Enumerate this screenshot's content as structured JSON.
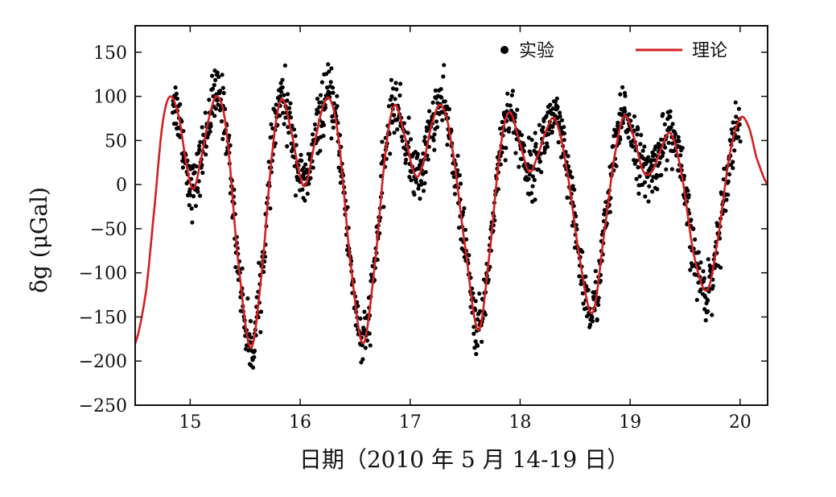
{
  "chart_data": {
    "type": "scatter",
    "title": "",
    "xlabel": "日期（2010 年 5 月 14-19 日）",
    "ylabel": "δg (μGal)",
    "xlim": [
      14.5,
      20.25
    ],
    "ylim": [
      -250,
      180
    ],
    "x_ticks": [
      15,
      16,
      17,
      18,
      19,
      20
    ],
    "y_ticks": [
      150,
      100,
      50,
      0,
      -50,
      -100,
      -150,
      -200,
      -250
    ],
    "x_tick_labels": [
      "15",
      "16",
      "17",
      "18",
      "19",
      "20"
    ],
    "y_tick_labels": [
      "150",
      "100",
      "50",
      "0",
      "−50",
      "−100",
      "−150",
      "−200",
      "−250"
    ],
    "grid": false,
    "legend_position": "top-right",
    "series": [
      {
        "name": "实验",
        "kind": "scatter",
        "color": "#000000",
        "x_range": [
          14.84,
          20.0
        ],
        "note_hidden": ""
      },
      {
        "name": "理论",
        "kind": "line",
        "color": "#d42020",
        "keypoints": [
          [
            14.5,
            -180
          ],
          [
            14.6,
            -120
          ],
          [
            14.68,
            -20
          ],
          [
            14.75,
            70
          ],
          [
            14.82,
            100
          ],
          [
            14.9,
            75
          ],
          [
            14.97,
            20
          ],
          [
            15.03,
            -5
          ],
          [
            15.1,
            30
          ],
          [
            15.18,
            80
          ],
          [
            15.25,
            100
          ],
          [
            15.33,
            60
          ],
          [
            15.43,
            -80
          ],
          [
            15.55,
            -185
          ],
          [
            15.65,
            -100
          ],
          [
            15.75,
            40
          ],
          [
            15.83,
            97
          ],
          [
            15.92,
            60
          ],
          [
            16.0,
            10
          ],
          [
            16.05,
            0
          ],
          [
            16.12,
            40
          ],
          [
            16.2,
            85
          ],
          [
            16.27,
            97
          ],
          [
            16.35,
            50
          ],
          [
            16.45,
            -80
          ],
          [
            16.57,
            -180
          ],
          [
            16.68,
            -90
          ],
          [
            16.78,
            40
          ],
          [
            16.86,
            90
          ],
          [
            16.95,
            55
          ],
          [
            17.05,
            10
          ],
          [
            17.12,
            25
          ],
          [
            17.2,
            70
          ],
          [
            17.28,
            90
          ],
          [
            17.37,
            50
          ],
          [
            17.5,
            -70
          ],
          [
            17.62,
            -165
          ],
          [
            17.72,
            -80
          ],
          [
            17.82,
            40
          ],
          [
            17.9,
            82
          ],
          [
            17.98,
            55
          ],
          [
            18.08,
            15
          ],
          [
            18.15,
            30
          ],
          [
            18.25,
            65
          ],
          [
            18.32,
            73
          ],
          [
            18.42,
            20
          ],
          [
            18.55,
            -90
          ],
          [
            18.66,
            -145
          ],
          [
            18.77,
            -50
          ],
          [
            18.87,
            40
          ],
          [
            18.95,
            78
          ],
          [
            19.03,
            55
          ],
          [
            19.12,
            15
          ],
          [
            19.2,
            15
          ],
          [
            19.28,
            40
          ],
          [
            19.37,
            58
          ],
          [
            19.47,
            10
          ],
          [
            19.58,
            -80
          ],
          [
            19.7,
            -120
          ],
          [
            19.8,
            -60
          ],
          [
            19.9,
            30
          ],
          [
            20.0,
            75
          ],
          [
            20.08,
            65
          ],
          [
            20.15,
            30
          ],
          [
            20.25,
            0
          ]
        ]
      }
    ]
  },
  "colors": {
    "theory_line": "#d42020",
    "experiment_dots": "#000000",
    "axes": "#111111",
    "background": "#ffffff"
  }
}
